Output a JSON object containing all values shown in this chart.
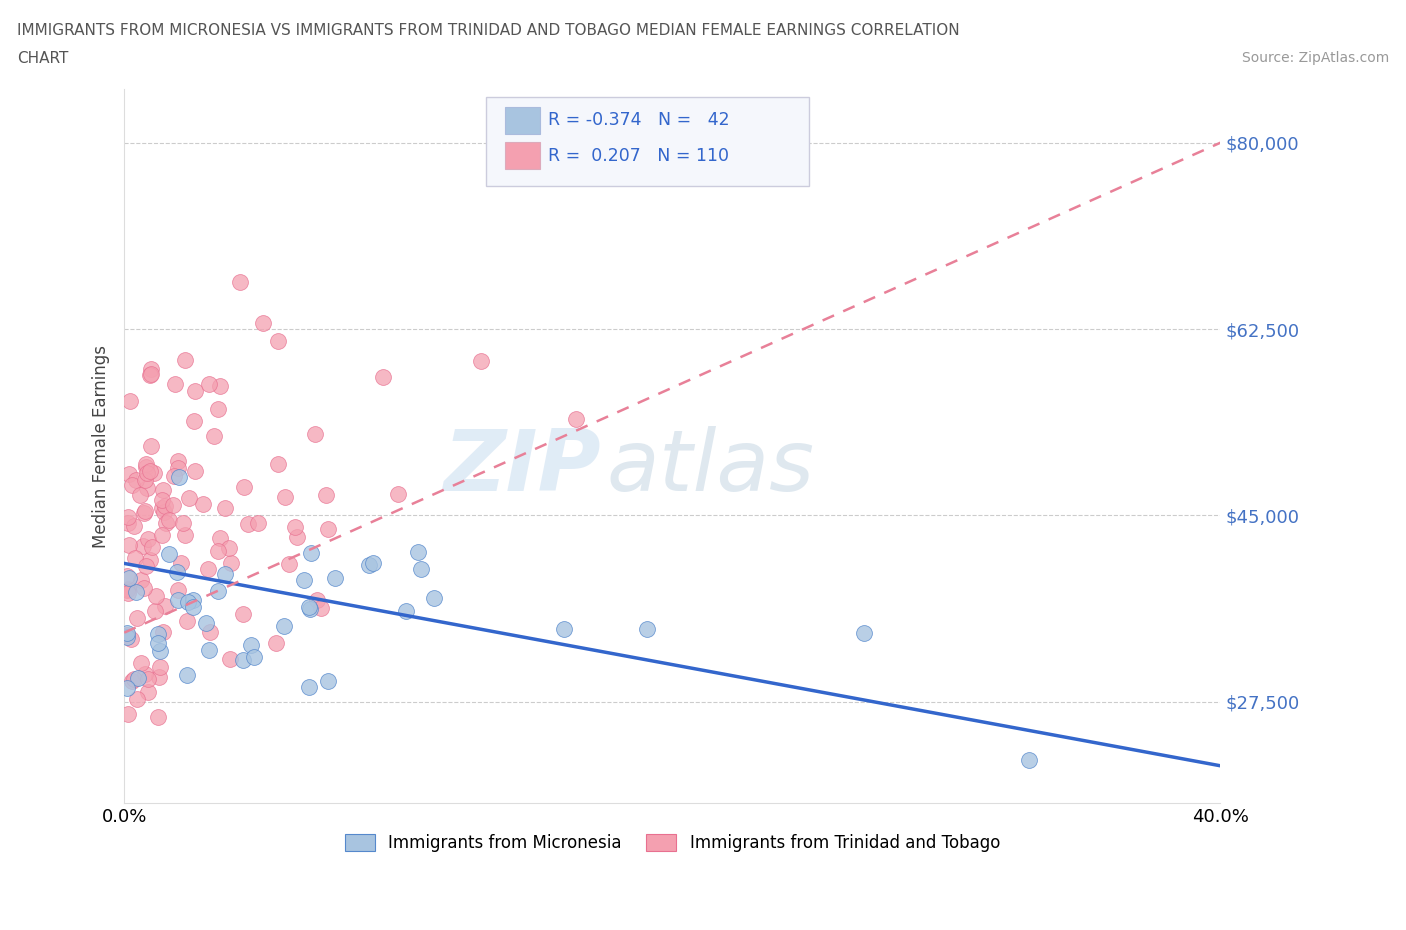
{
  "title_line1": "IMMIGRANTS FROM MICRONESIA VS IMMIGRANTS FROM TRINIDAD AND TOBAGO MEDIAN FEMALE EARNINGS CORRELATION",
  "title_line2": "CHART",
  "source_text": "Source: ZipAtlas.com",
  "ylabel": "Median Female Earnings",
  "xlim": [
    0.0,
    0.4
  ],
  "ylim": [
    18000,
    85000
  ],
  "yticks": [
    27500,
    45000,
    62500,
    80000
  ],
  "ytick_labels": [
    "$27,500",
    "$45,000",
    "$62,500",
    "$80,000"
  ],
  "xticks": [
    0.0,
    0.05,
    0.1,
    0.15,
    0.2,
    0.25,
    0.3,
    0.35,
    0.4
  ],
  "color_micronesia": "#a8c4e0",
  "color_trinidad": "#f4a0b0",
  "line_color_micronesia": "#3366cc",
  "line_color_trinidad": "#e88098",
  "legend_R1": "-0.374",
  "legend_N1": "42",
  "legend_R2": "0.207",
  "legend_N2": "110",
  "watermark_zip": "ZIP",
  "watermark_atlas": "atlas",
  "N_micronesia": 42,
  "N_trinidad": 110,
  "mic_line_x0": 0.0,
  "mic_line_y0": 40500,
  "mic_line_x1": 0.4,
  "mic_line_y1": 21500,
  "tri_line_x0": 0.0,
  "tri_line_y0": 34000,
  "tri_line_x1": 0.4,
  "tri_line_y1": 80000
}
